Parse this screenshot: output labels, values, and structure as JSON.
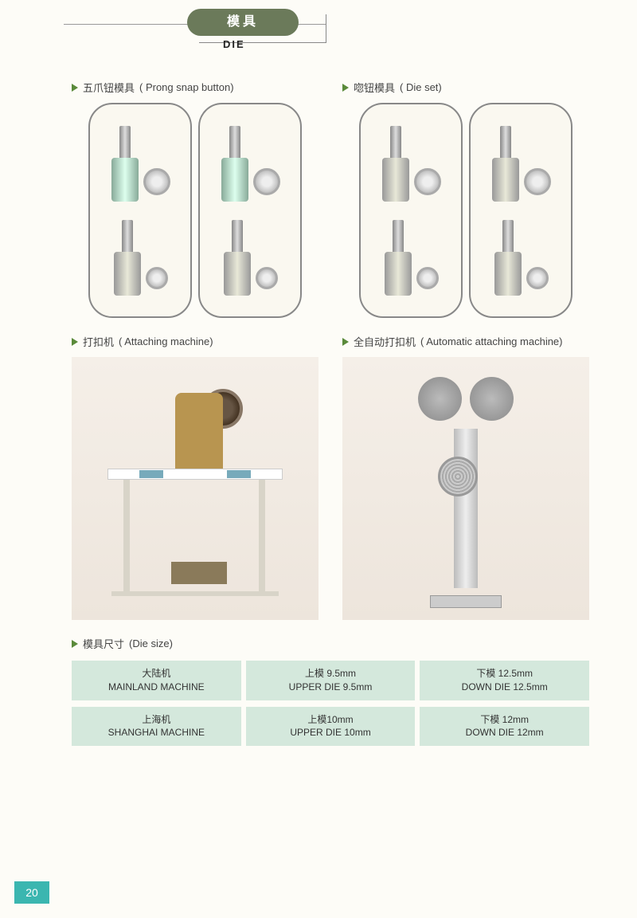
{
  "header": {
    "title_cn": "模具",
    "title_en": "DIE"
  },
  "sections": {
    "prong": {
      "cn": "五爪钮模具",
      "en": "( Prong snap button)"
    },
    "dieset": {
      "cn": "唿钮模具",
      "en": "( Die set)"
    },
    "attach": {
      "cn": "打扣机",
      "en": "( Attaching machine)"
    },
    "auto": {
      "cn": "全自动打扣机",
      "en": "( Automatic attaching machine)"
    },
    "size": {
      "cn": "模具尺寸",
      "en": "(Die size)"
    }
  },
  "table": {
    "rows": [
      {
        "c1_cn": "大陆机",
        "c1_en": "MAINLAND MACHINE",
        "c2_cn": "上模 9.5mm",
        "c2_en": "UPPER DIE 9.5mm",
        "c3_cn": "下模 12.5mm",
        "c3_en": "DOWN DIE 12.5mm"
      },
      {
        "c1_cn": "上海机",
        "c1_en": "SHANGHAI MACHINE",
        "c2_cn": "上模10mm",
        "c2_en": "UPPER DIE 10mm",
        "c3_cn": "下模 12mm",
        "c3_en": "DOWN DIE 12mm"
      }
    ]
  },
  "page_number": "20",
  "colors": {
    "pill_bg": "#6b7a5a",
    "triangle": "#5a8a3a",
    "table_cell_bg": "#d4e8dc",
    "page_bg": "#fdfcf7",
    "pagenum_bg": "#3bb6b0"
  }
}
